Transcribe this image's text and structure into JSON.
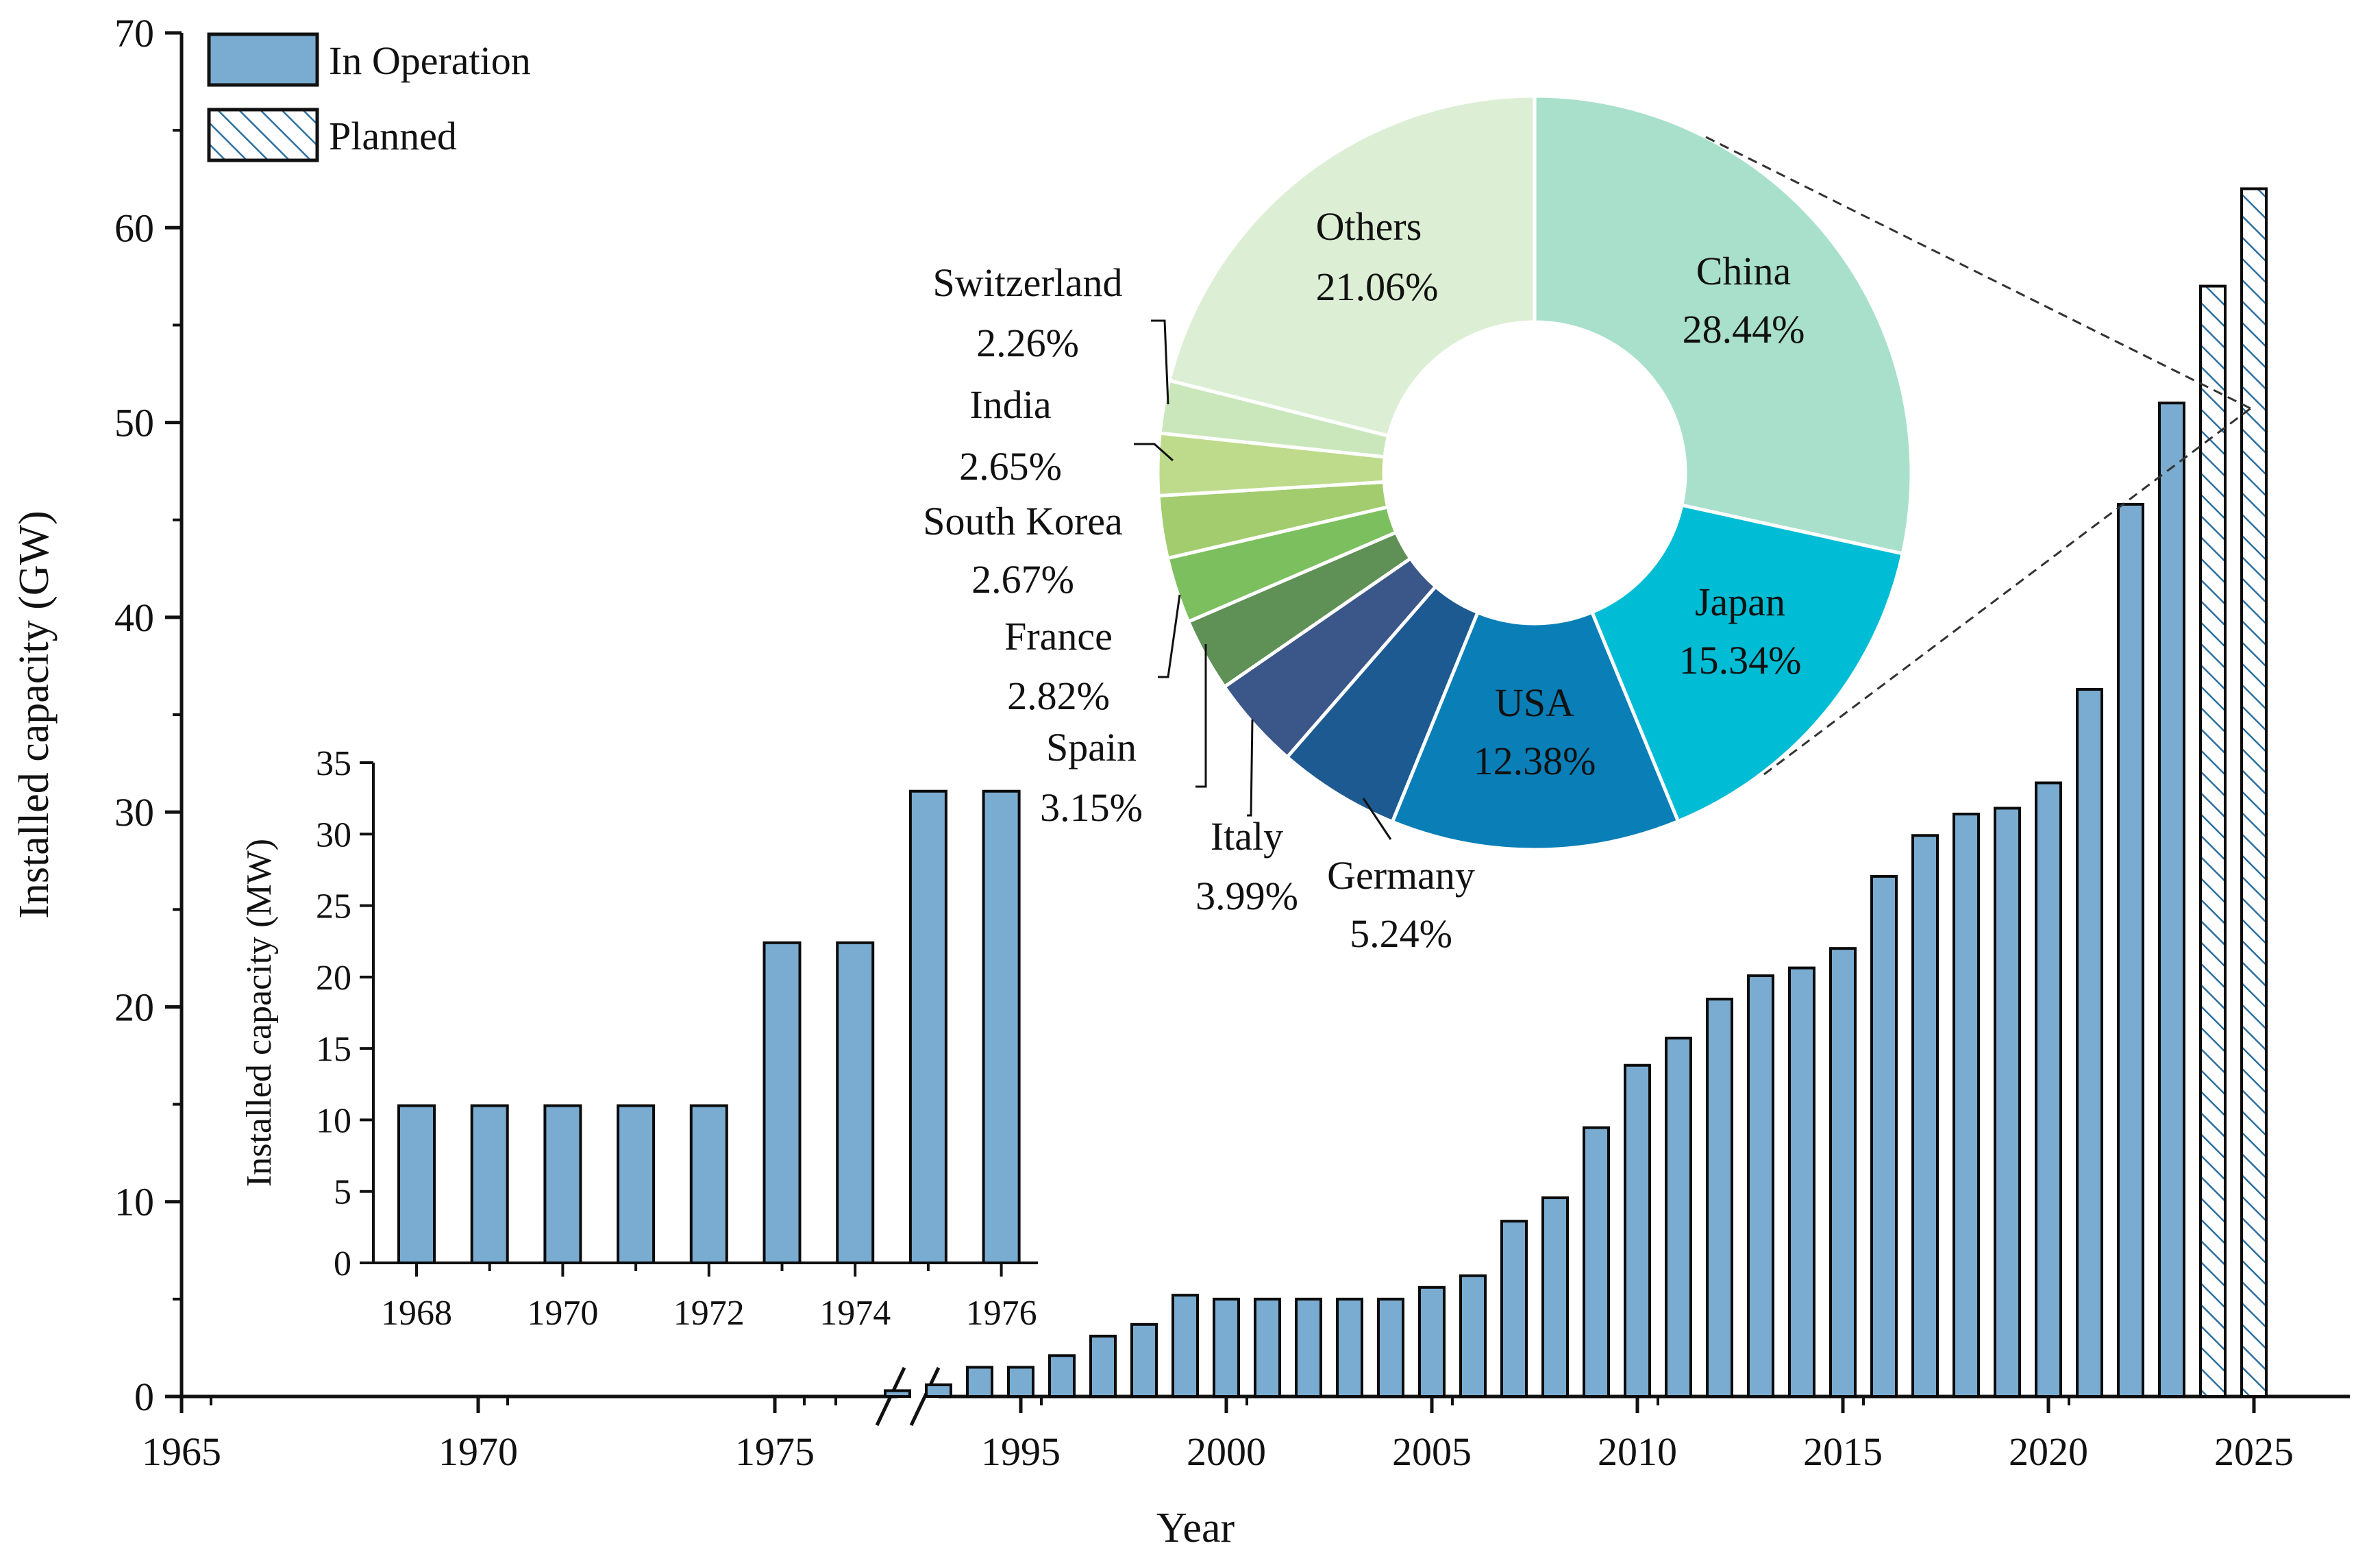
{
  "chart_data": [
    {
      "type": "bar",
      "name": "main",
      "xlabel": "Year",
      "ylabel": "Installed capacity (GW)",
      "ylim": [
        0,
        70
      ],
      "yticks": [
        0,
        10,
        20,
        30,
        40,
        50,
        60,
        70
      ],
      "axis_break": true,
      "xticks_left": [
        "1965",
        "1970",
        "1975"
      ],
      "xticks_right": [
        "1995",
        "2000",
        "2005",
        "2010",
        "2015",
        "2020",
        "2025"
      ],
      "legend": {
        "placement": "top-left",
        "entries": [
          {
            "label": "In Operation",
            "style": "solid"
          },
          {
            "label": "Planned",
            "style": "hatched"
          }
        ]
      },
      "colors": {
        "bar": "#7aacd1",
        "edge": "#0b0b0b",
        "hatch": "#2c6fa0"
      },
      "series": [
        {
          "name": "In Operation",
          "x": [
            1992,
            1993,
            1994,
            1995,
            1996,
            1997,
            1998,
            1999,
            2000,
            2001,
            2002,
            2003,
            2004,
            2005,
            2006,
            2007,
            2008,
            2009,
            2010,
            2011,
            2012,
            2013,
            2014,
            2015,
            2016,
            2017,
            2018,
            2019,
            2020,
            2021,
            2022,
            2023
          ],
          "values": [
            0.3,
            0.6,
            1.5,
            1.5,
            2.1,
            3.1,
            3.7,
            5.2,
            5.0,
            5.0,
            5.0,
            5.0,
            5.0,
            5.6,
            6.2,
            9.0,
            10.2,
            13.8,
            17.0,
            18.4,
            20.4,
            21.6,
            22.0,
            23.0,
            26.7,
            28.8,
            29.9,
            30.2,
            31.5,
            36.3,
            45.8,
            51.0
          ]
        },
        {
          "name": "Planned",
          "x": [
            2024,
            2025
          ],
          "values": [
            57.0,
            62.0
          ]
        }
      ]
    },
    {
      "type": "bar",
      "name": "inset",
      "xlabel": "",
      "ylabel": "Installed capacity (MW)",
      "ylim": [
        0,
        35
      ],
      "yticks": [
        0,
        5,
        10,
        15,
        20,
        25,
        30,
        35
      ],
      "xticks": [
        "1968",
        "1970",
        "1972",
        "1974",
        "1976"
      ],
      "categories": [
        1968,
        1969,
        1970,
        1971,
        1972,
        1973,
        1974,
        1975,
        1976
      ],
      "values": [
        11,
        11,
        11,
        11,
        11,
        22.4,
        22.4,
        33,
        33
      ]
    },
    {
      "type": "pie",
      "name": "donut",
      "slices": [
        {
          "label": "China",
          "pct_text": "28.44%",
          "value": 28.44,
          "color": "#a8e0cc"
        },
        {
          "label": "Japan",
          "pct_text": "15.34%",
          "value": 15.34,
          "color": "#00bcd4"
        },
        {
          "label": "USA",
          "pct_text": "12.38%",
          "value": 12.38,
          "color": "#0a7eb6"
        },
        {
          "label": "Germany",
          "pct_text": "5.24%",
          "value": 5.24,
          "color": "#1c5a91"
        },
        {
          "label": "Italy",
          "pct_text": "3.99%",
          "value": 3.99,
          "color": "#3b5688"
        },
        {
          "label": "Spain",
          "pct_text": "3.15%",
          "value": 3.15,
          "color": "#5f9055"
        },
        {
          "label": "France",
          "pct_text": "2.82%",
          "value": 2.82,
          "color": "#7cbf5e"
        },
        {
          "label": "South Korea",
          "pct_text": "2.67%",
          "value": 2.67,
          "color": "#a2cc6e"
        },
        {
          "label": "India",
          "pct_text": "2.65%",
          "value": 2.65,
          "color": "#bedb8c"
        },
        {
          "label": "Switzerland",
          "pct_text": "2.26%",
          "value": 2.26,
          "color": "#cae7bc"
        },
        {
          "label": "Others",
          "pct_text": "21.06%",
          "value": 21.06,
          "color": "#dcefd4"
        }
      ]
    }
  ]
}
